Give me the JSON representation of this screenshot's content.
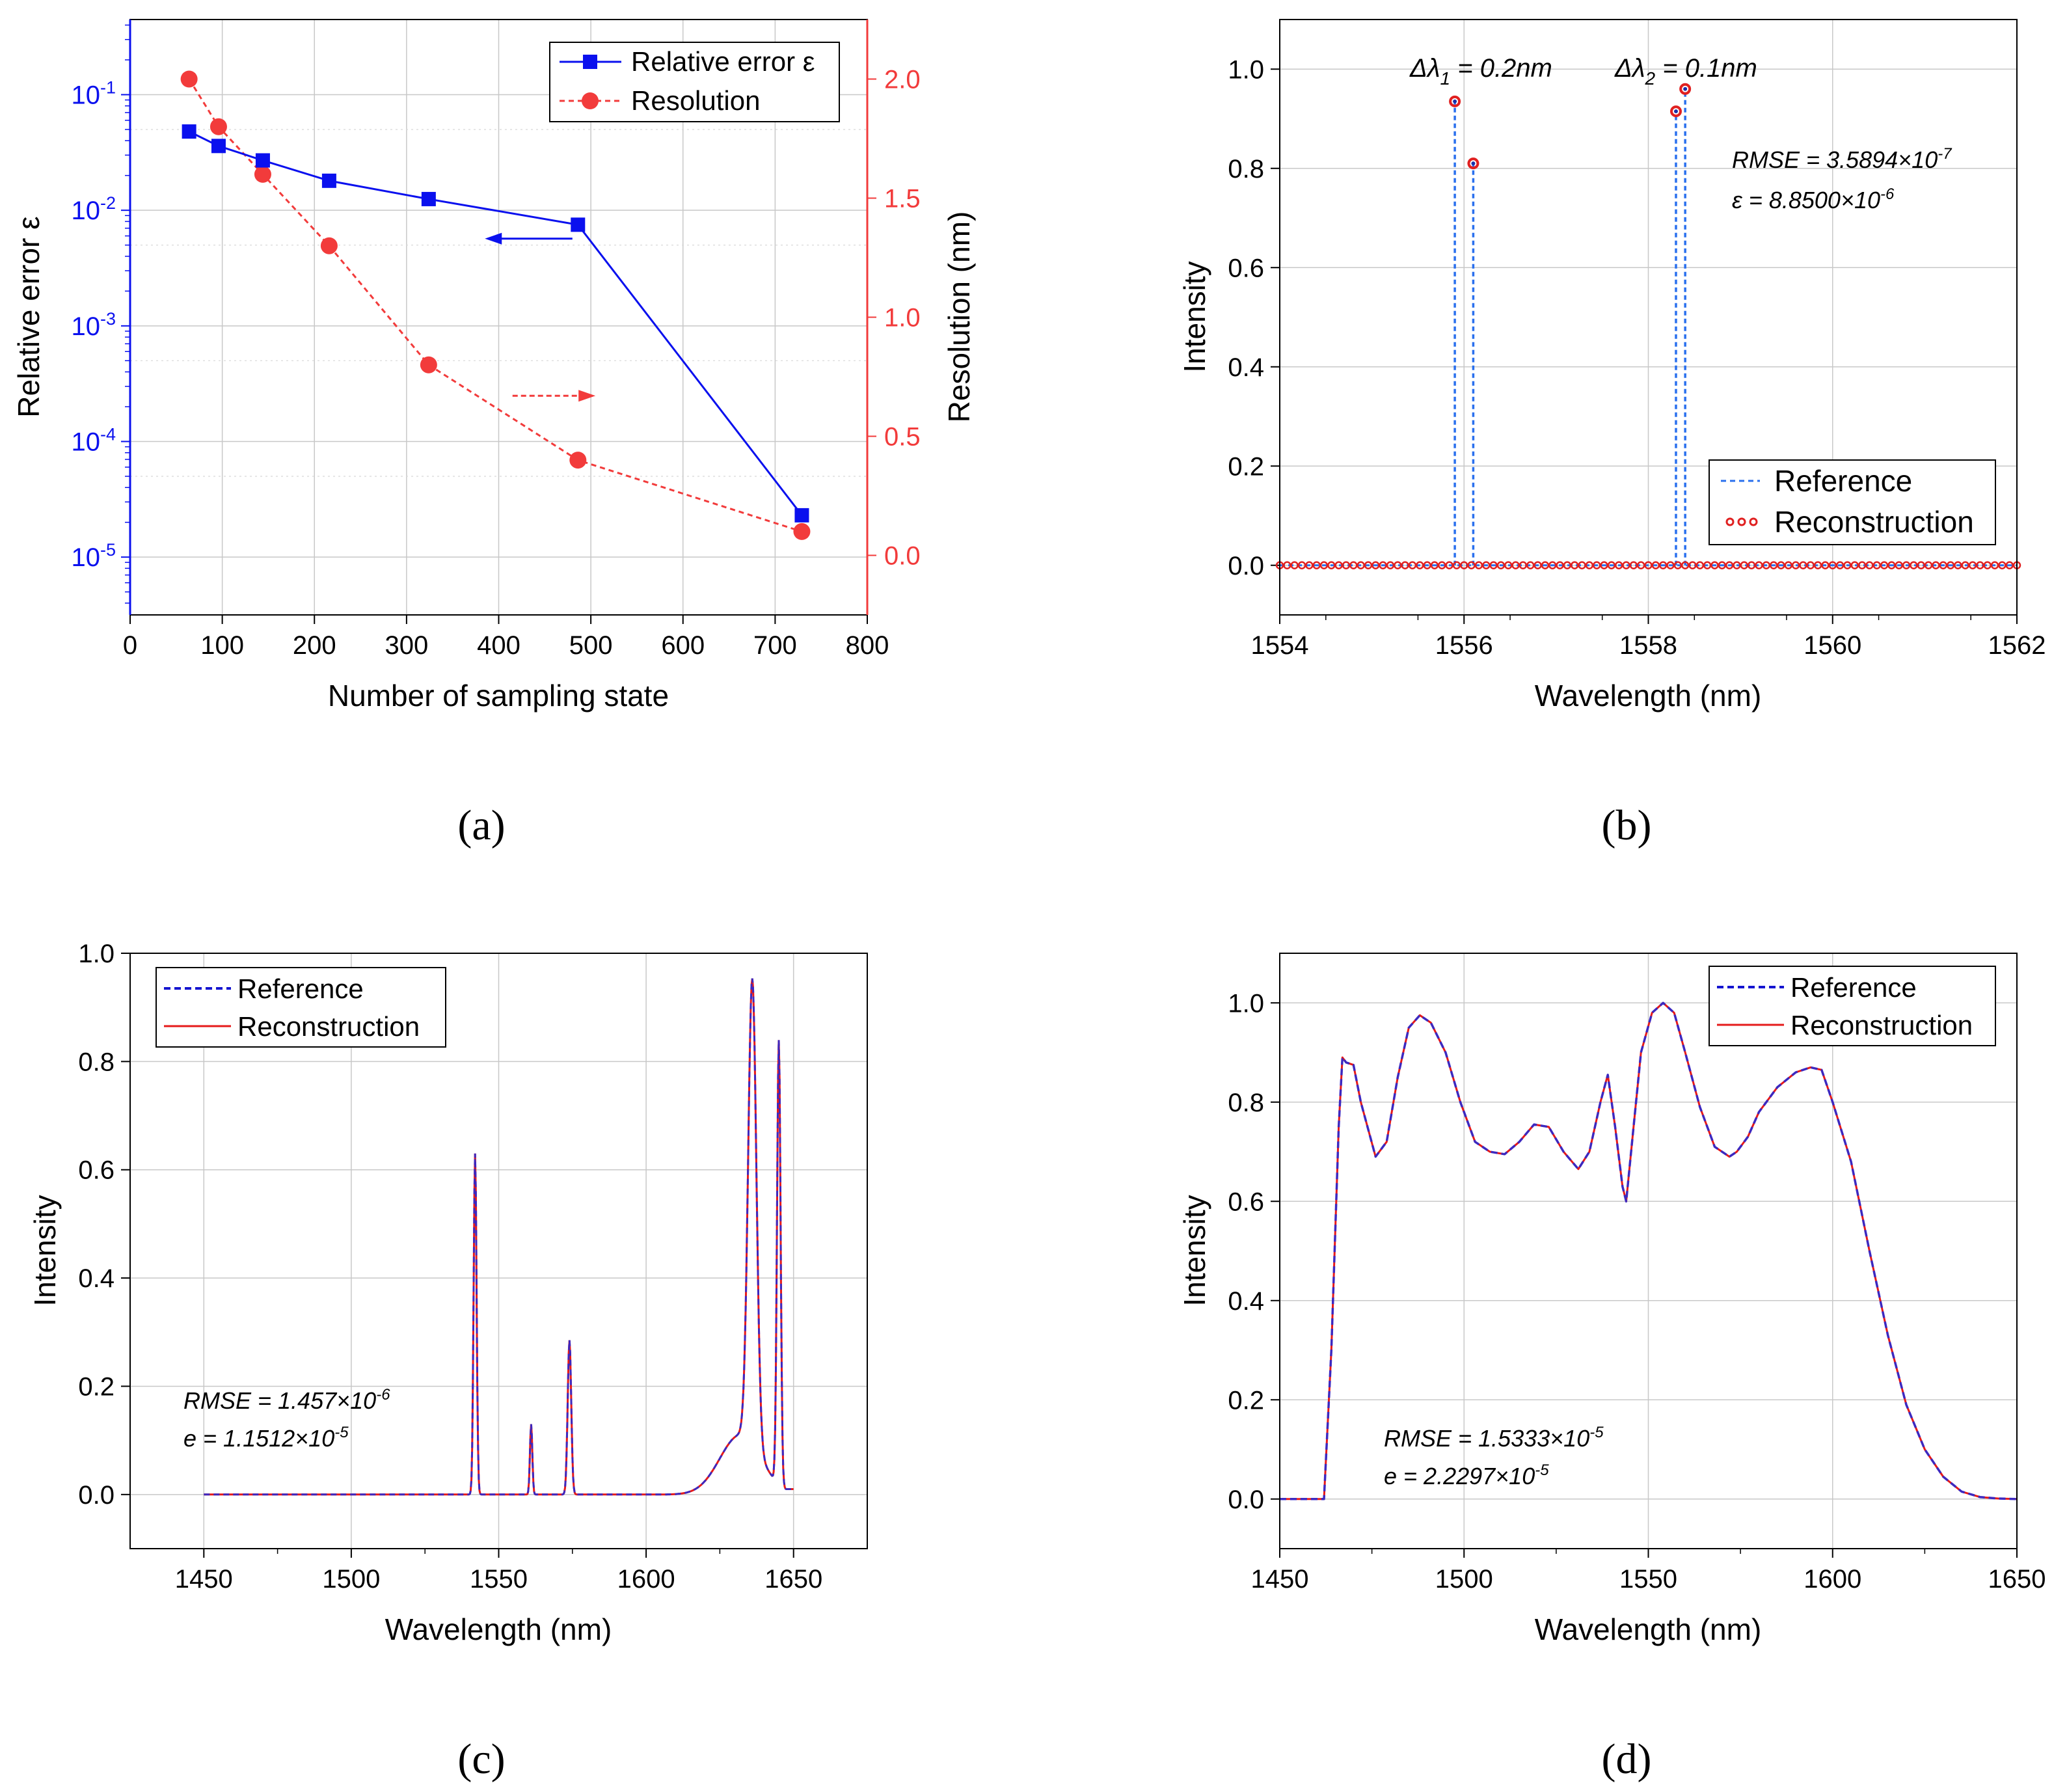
{
  "colors": {
    "blue": "#0a10ee",
    "red": "#f23b3b",
    "ref_blue": "#2a70ee",
    "purple": "#8a2a7a",
    "grid": "#c8c8c8",
    "axis": "#000000"
  },
  "chart_data": [
    {
      "panel": "(a)",
      "type": "line",
      "xlabel": "Number of sampling state",
      "ylabel": "Relative error ε",
      "ylabel_right": "Resolution (nm)",
      "xlim": [
        0,
        800
      ],
      "xticks": [
        0,
        100,
        200,
        300,
        400,
        500,
        600,
        700,
        800
      ],
      "ylim_log": [
        -5.5,
        -0.35
      ],
      "yticks_left": [
        {
          "exp": -5,
          "base": "10",
          "sup": "-5"
        },
        {
          "exp": -4,
          "base": "10",
          "sup": "-4"
        },
        {
          "exp": -3,
          "base": "10",
          "sup": "-3"
        },
        {
          "exp": -2,
          "base": "10",
          "sup": "-2"
        },
        {
          "exp": -1,
          "base": "10",
          "sup": "-1"
        }
      ],
      "ylim_right": [
        -0.25,
        2.25
      ],
      "yticks_right": [
        "0.0",
        "0.5",
        "1.0",
        "1.5",
        "2.0"
      ],
      "series": [
        {
          "name": "Relative error ε",
          "axis": "left",
          "marker": "square",
          "x": [
            64,
            96,
            144,
            216,
            324,
            486,
            729
          ],
          "values": [
            0.048,
            0.036,
            0.027,
            0.018,
            0.0125,
            0.0075,
            2.3e-05
          ]
        },
        {
          "name": "Resolution",
          "axis": "right",
          "marker": "circle",
          "dashed": true,
          "x": [
            64,
            96,
            144,
            216,
            324,
            486,
            729
          ],
          "values": [
            2.0,
            1.8,
            1.6,
            1.3,
            0.8,
            0.4,
            0.1
          ]
        }
      ],
      "legend": {
        "position": "top-right",
        "labels": [
          "Relative error ε",
          "Resolution"
        ]
      },
      "arrows": [
        {
          "color": "blue",
          "direction": "left",
          "x_from": 480,
          "x_to": 385,
          "yres": 1.33
        },
        {
          "color": "red",
          "direction": "right",
          "x_from": 415,
          "x_to": 505,
          "yres": 0.67
        }
      ]
    },
    {
      "panel": "(b)",
      "type": "line",
      "xlabel": "Wavelength (nm)",
      "ylabel": "Intensity",
      "xlim": [
        1554,
        1562
      ],
      "xticks": [
        "1554",
        "1556",
        "1558",
        "1560",
        "1562"
      ],
      "ylim": [
        -0.1,
        1.1
      ],
      "yticks": [
        "0.0",
        "0.2",
        "0.4",
        "0.6",
        "0.8",
        "1.0"
      ],
      "series": [
        {
          "name": "Reference",
          "style": "dashed",
          "peaks": [
            [
              1555.9,
              0.935
            ],
            [
              1556.1,
              0.81
            ],
            [
              1558.3,
              0.915
            ],
            [
              1558.4,
              0.96
            ]
          ]
        },
        {
          "name": "Reconstruction",
          "style": "circles",
          "baseline_step": 0.08,
          "peaks": [
            [
              1555.9,
              0.935
            ],
            [
              1556.1,
              0.81
            ],
            [
              1558.3,
              0.915
            ],
            [
              1558.4,
              0.96
            ]
          ]
        }
      ],
      "legend": {
        "position": "bottom-right",
        "labels": [
          "Reference",
          "Reconstruction"
        ]
      },
      "annotations": {
        "d1_pre": "Δλ",
        "d1_sub": "1",
        "d1_post": " = 0.2nm",
        "d2_pre": "Δλ",
        "d2_sub": "2",
        "d2_post": " = 0.1nm",
        "rmse_pre": "RMSE = 3.5894×10",
        "rmse_sup": "-7",
        "eps_pre": "ε = 8.8500×10",
        "eps_sup": "-6"
      }
    },
    {
      "panel": "(c)",
      "type": "line",
      "xlabel": "Wavelength (nm)",
      "ylabel": "Intensity",
      "xlim": [
        1425,
        1675
      ],
      "xticks": [
        "1450",
        "1500",
        "1550",
        "1600",
        "1650"
      ],
      "ylim": [
        -0.1,
        1.0
      ],
      "yticks": [
        "0.0",
        "0.2",
        "0.4",
        "0.6",
        "0.8",
        "1.0"
      ],
      "series": [
        {
          "name": "Reference",
          "style": "dashed",
          "range": [
            1450,
            1650
          ],
          "baseline": 0.0,
          "peaks": [
            [
              1542,
              0.63,
              0.5
            ],
            [
              1561,
              0.13,
              0.4
            ],
            [
              1574,
              0.285,
              0.6
            ],
            [
              1636,
              0.86,
              1.4
            ],
            [
              1645,
              0.82,
              0.6
            ]
          ],
          "broad": [
            [
              1632,
              0.11,
              7
            ]
          ]
        },
        {
          "name": "Reconstruction",
          "style": "solid",
          "same_as": "Reference"
        }
      ],
      "legend": {
        "position": "top-left",
        "labels": [
          "Reference",
          "Reconstruction"
        ]
      },
      "annotations": {
        "rmse_pre": "RMSE = 1.457×10",
        "rmse_sup": "-6",
        "e_pre": "e = 1.1512×10",
        "e_sup": "-5"
      }
    },
    {
      "panel": "(d)",
      "type": "line",
      "xlabel": "Wavelength (nm)",
      "ylabel": "Intensity",
      "xlim": [
        1450,
        1650
      ],
      "xticks": [
        "1450",
        "1500",
        "1550",
        "1600",
        "1650"
      ],
      "ylim": [
        -0.1,
        1.1
      ],
      "yticks": [
        "0.0",
        "0.2",
        "0.4",
        "0.6",
        "0.8",
        "1.0"
      ],
      "series": [
        {
          "name": "Reference",
          "style": "dashed",
          "x": [
            1450,
            1462,
            1464,
            1466,
            1467,
            1468,
            1470,
            1472,
            1476,
            1479,
            1482,
            1485,
            1488,
            1491,
            1495,
            1499,
            1503,
            1507,
            1511,
            1515,
            1519,
            1523,
            1527,
            1531,
            1534,
            1537,
            1539,
            1541,
            1543,
            1544,
            1546,
            1548,
            1551,
            1554,
            1557,
            1560,
            1564,
            1568,
            1572,
            1574,
            1577,
            1580,
            1585,
            1590,
            1594,
            1597,
            1600,
            1605,
            1610,
            1615,
            1620,
            1625,
            1630,
            1635,
            1640,
            1645,
            1650
          ],
          "values": [
            0.0,
            0.0,
            0.3,
            0.75,
            0.89,
            0.88,
            0.875,
            0.8,
            0.69,
            0.72,
            0.85,
            0.95,
            0.975,
            0.96,
            0.9,
            0.8,
            0.72,
            0.7,
            0.695,
            0.72,
            0.755,
            0.75,
            0.7,
            0.665,
            0.7,
            0.8,
            0.855,
            0.75,
            0.63,
            0.6,
            0.75,
            0.9,
            0.98,
            1.0,
            0.98,
            0.9,
            0.79,
            0.71,
            0.69,
            0.7,
            0.73,
            0.78,
            0.83,
            0.86,
            0.87,
            0.865,
            0.8,
            0.68,
            0.5,
            0.33,
            0.19,
            0.1,
            0.045,
            0.015,
            0.004,
            0.001,
            0.0
          ]
        },
        {
          "name": "Reconstruction",
          "style": "solid",
          "same_as": "Reference"
        }
      ],
      "legend": {
        "position": "top-right",
        "labels": [
          "Reference",
          "Reconstruction"
        ]
      },
      "annotations": {
        "rmse_pre": "RMSE = 1.5333×10",
        "rmse_sup": "-5",
        "e_pre": "e = 2.2297×10",
        "e_sup": "-5"
      }
    }
  ]
}
